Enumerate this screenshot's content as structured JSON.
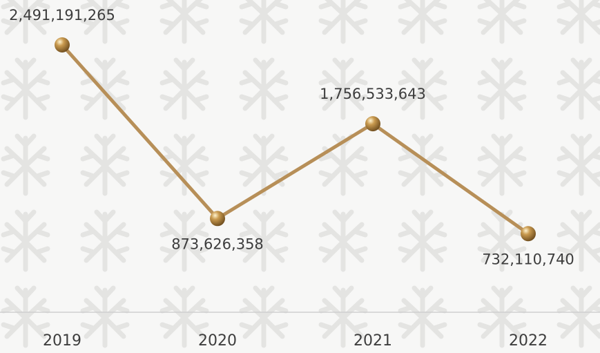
{
  "chart_data": {
    "type": "line",
    "categories": [
      "2019",
      "2020",
      "2021",
      "2022"
    ],
    "values": [
      2491191265,
      873626358,
      1756533643,
      732110740
    ],
    "value_labels": [
      "2,491,191,265",
      "873,626,358",
      "1,756,533,643",
      "732,110,740"
    ],
    "color": "#b78f58"
  }
}
